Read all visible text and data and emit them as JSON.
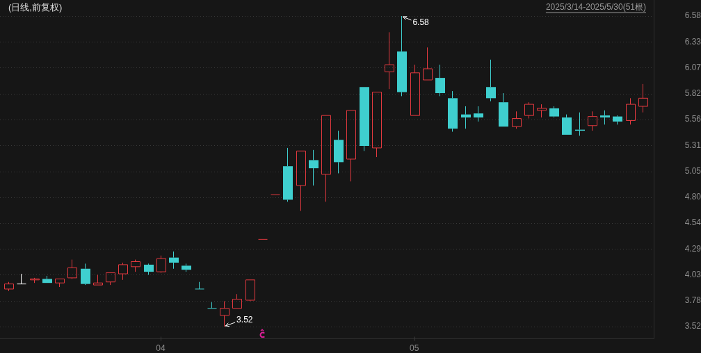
{
  "chart_data": {
    "type": "candlestick",
    "title": "(日线,前复权)",
    "annotations": [
      "2025/3/14-2025/5/30(51根)",
      "6.58",
      "3.52"
    ],
    "categories": [
      null,
      null,
      null,
      null,
      null,
      null,
      null,
      null,
      null,
      null,
      null,
      null,
      "04",
      null,
      null,
      null,
      null,
      null,
      null,
      null,
      null,
      null,
      null,
      null,
      null,
      null,
      null,
      null,
      null,
      null,
      null,
      null,
      "05",
      null,
      null,
      null,
      null,
      null,
      null,
      null,
      null,
      null,
      null,
      null,
      null,
      null,
      null,
      null,
      null,
      null,
      null
    ],
    "ohlc": [
      [
        3.89,
        3.96,
        3.87,
        3.94
      ],
      [
        3.94,
        4.04,
        3.94,
        3.94
      ],
      [
        3.98,
        4.0,
        3.95,
        3.99
      ],
      [
        3.99,
        4.02,
        3.95,
        3.95
      ],
      [
        3.95,
        3.99,
        3.91,
        3.99
      ],
      [
        4.0,
        4.18,
        3.99,
        4.1
      ],
      [
        4.09,
        4.14,
        3.93,
        3.94
      ],
      [
        3.93,
        4.03,
        3.93,
        3.95
      ],
      [
        3.96,
        4.05,
        3.93,
        4.05
      ],
      [
        4.04,
        4.15,
        3.98,
        4.13
      ],
      [
        4.11,
        4.18,
        4.06,
        4.16
      ],
      [
        4.13,
        4.14,
        4.03,
        4.06
      ],
      [
        4.06,
        4.22,
        4.05,
        4.19
      ],
      [
        4.2,
        4.26,
        4.09,
        4.15
      ],
      [
        4.12,
        4.14,
        4.06,
        4.08
      ],
      [
        3.89,
        3.96,
        3.89,
        3.89
      ],
      [
        3.7,
        3.76,
        3.7,
        3.7
      ],
      [
        3.63,
        3.77,
        3.52,
        3.7
      ],
      [
        3.7,
        3.84,
        3.7,
        3.79
      ],
      [
        3.78,
        3.98,
        3.77,
        3.98
      ],
      [
        4.38,
        4.38,
        4.38,
        4.38
      ],
      [
        4.82,
        4.82,
        4.82,
        4.82
      ],
      [
        5.1,
        5.28,
        4.75,
        4.77
      ],
      [
        4.91,
        5.25,
        4.66,
        5.25
      ],
      [
        5.16,
        5.26,
        4.91,
        5.08
      ],
      [
        5.02,
        5.6,
        4.75,
        5.6
      ],
      [
        5.36,
        5.45,
        5.03,
        5.14
      ],
      [
        5.17,
        5.65,
        4.95,
        5.65
      ],
      [
        5.88,
        5.88,
        5.25,
        5.3
      ],
      [
        5.28,
        5.83,
        5.19,
        5.83
      ],
      [
        6.03,
        6.42,
        5.86,
        6.1
      ],
      [
        6.23,
        6.58,
        5.79,
        5.83
      ],
      [
        5.6,
        6.1,
        5.6,
        6.02
      ],
      [
        5.95,
        6.27,
        5.95,
        6.06
      ],
      [
        5.97,
        6.1,
        5.79,
        5.82
      ],
      [
        5.77,
        5.84,
        5.44,
        5.47
      ],
      [
        5.61,
        5.69,
        5.47,
        5.58
      ],
      [
        5.62,
        5.69,
        5.54,
        5.58
      ],
      [
        5.88,
        6.15,
        5.74,
        5.77
      ],
      [
        5.73,
        5.82,
        5.49,
        5.49
      ],
      [
        5.49,
        5.64,
        5.47,
        5.57
      ],
      [
        5.6,
        5.73,
        5.57,
        5.71
      ],
      [
        5.65,
        5.71,
        5.58,
        5.67
      ],
      [
        5.67,
        5.69,
        5.58,
        5.59
      ],
      [
        5.58,
        5.61,
        5.41,
        5.41
      ],
      [
        5.46,
        5.63,
        5.4,
        5.45
      ],
      [
        5.5,
        5.64,
        5.45,
        5.59
      ],
      [
        5.6,
        5.65,
        5.51,
        5.58
      ],
      [
        5.59,
        5.6,
        5.51,
        5.54
      ],
      [
        5.55,
        5.77,
        5.51,
        5.71
      ],
      [
        5.69,
        5.91,
        5.63,
        5.77
      ]
    ],
    "colors": [
      "#e3393f",
      "#ffffff",
      "#e3393f",
      "#3fcfcf",
      "#e3393f",
      "#e3393f",
      "#3fcfcf",
      "#e3393f",
      "#e3393f",
      "#e3393f",
      "#e3393f",
      "#3fcfcf",
      "#e3393f",
      "#3fcfcf",
      "#3fcfcf",
      "#3fcfcf",
      "#3fcfcf",
      "#e3393f",
      "#e3393f",
      "#e3393f",
      "#e3393f",
      "#e3393f",
      "#3fcfcf",
      "#e3393f",
      "#3fcfcf",
      "#e3393f",
      "#3fcfcf",
      "#e3393f",
      "#3fcfcf",
      "#e3393f",
      "#e3393f",
      "#3fcfcf",
      "#e3393f",
      "#e3393f",
      "#3fcfcf",
      "#3fcfcf",
      "#3fcfcf",
      "#3fcfcf",
      "#3fcfcf",
      "#3fcfcf",
      "#e3393f",
      "#e3393f",
      "#e3393f",
      "#3fcfcf",
      "#3fcfcf",
      "#3fcfcf",
      "#e3393f",
      "#3fcfcf",
      "#3fcfcf",
      "#e3393f",
      "#e3393f"
    ],
    "ylim": [
      3.52,
      6.58
    ],
    "yticks": [
      3.52,
      {
        "value": 3.775,
        "label": "3.78"
      },
      4.03,
      {
        "value": 4.285,
        "label": "4.29"
      },
      4.54,
      {
        "value": 4.795,
        "label": "4.80"
      },
      5.05,
      {
        "value": 5.305,
        "label": "5.31"
      },
      5.56,
      {
        "value": 5.815,
        "label": "5.82"
      },
      6.07,
      {
        "value": 6.325,
        "label": "6.33"
      },
      6.58
    ],
    "grid": "y"
  }
}
